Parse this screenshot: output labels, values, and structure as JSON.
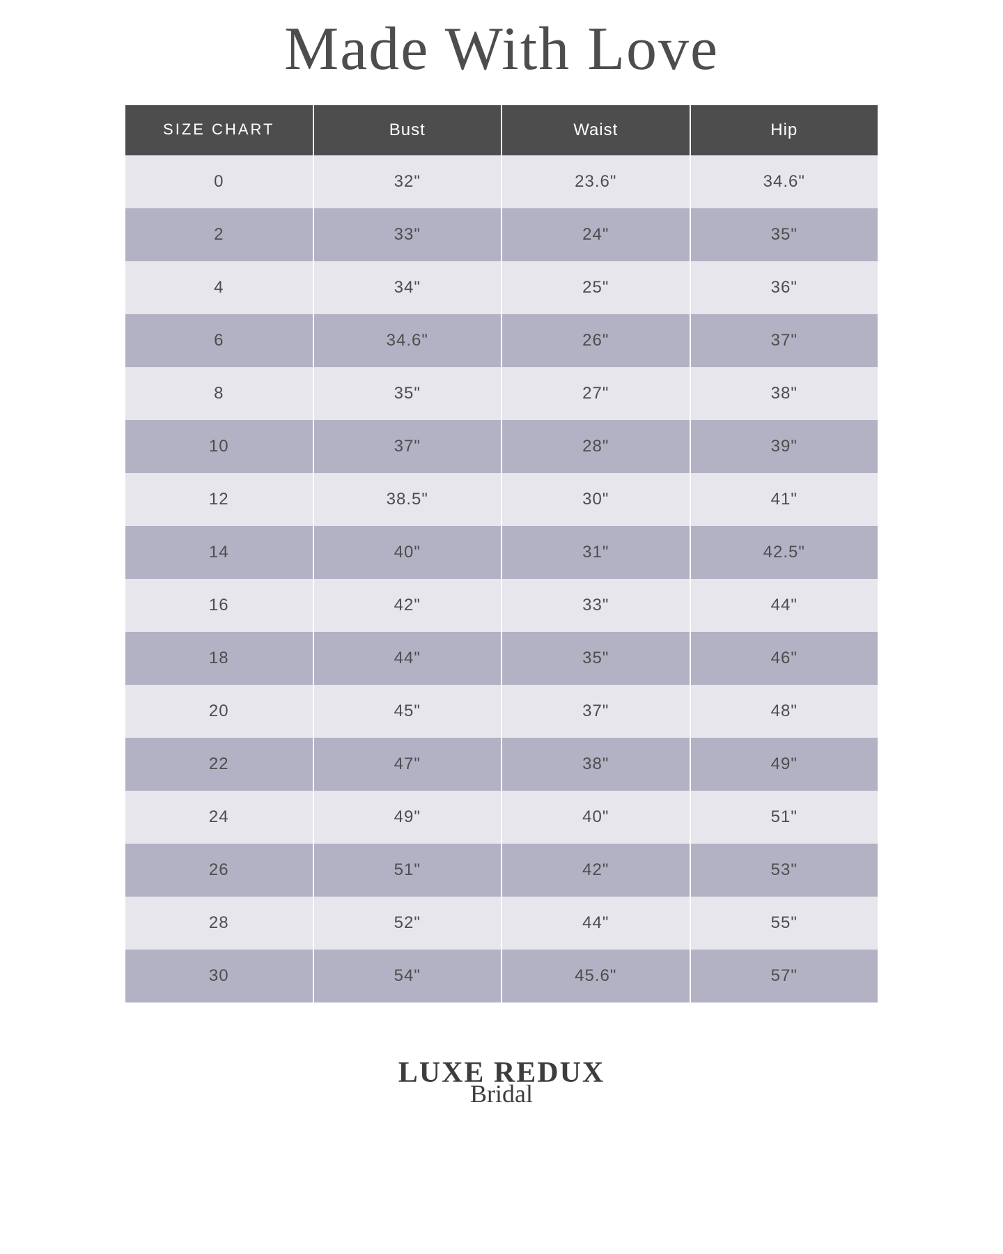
{
  "title": "Made With Love",
  "table": {
    "columns": [
      "SIZE CHART",
      "Bust",
      "Waist",
      "Hip"
    ],
    "rows": [
      [
        "0",
        "32\"",
        "23.6\"",
        "34.6\""
      ],
      [
        "2",
        "33\"",
        "24\"",
        "35\""
      ],
      [
        "4",
        "34\"",
        "25\"",
        "36\""
      ],
      [
        "6",
        "34.6\"",
        "26\"",
        "37\""
      ],
      [
        "8",
        "35\"",
        "27\"",
        "38\""
      ],
      [
        "10",
        "37\"",
        "28\"",
        "39\""
      ],
      [
        "12",
        "38.5\"",
        "30\"",
        "41\""
      ],
      [
        "14",
        "40\"",
        "31\"",
        "42.5\""
      ],
      [
        "16",
        "42\"",
        "33\"",
        "44\""
      ],
      [
        "18",
        "44\"",
        "35\"",
        "46\""
      ],
      [
        "20",
        "45\"",
        "37\"",
        "48\""
      ],
      [
        "22",
        "47\"",
        "38\"",
        "49\""
      ],
      [
        "24",
        "49\"",
        "40\"",
        "51\""
      ],
      [
        "26",
        "51\"",
        "42\"",
        "53\""
      ],
      [
        "28",
        "52\"",
        "44\"",
        "55\""
      ],
      [
        "30",
        "54\"",
        "45.6\"",
        "57\""
      ]
    ],
    "header_bg": "#4d4d4d",
    "header_fg": "#ffffff",
    "row_odd_bg": "#e7e6ec",
    "row_even_bg": "#b3b2c4",
    "cell_fg": "#4d4d4d",
    "cell_fontsize": 24
  },
  "footer": {
    "line1": "LUXE REDUX",
    "line2": "Bridal"
  },
  "background_color": "#ffffff"
}
